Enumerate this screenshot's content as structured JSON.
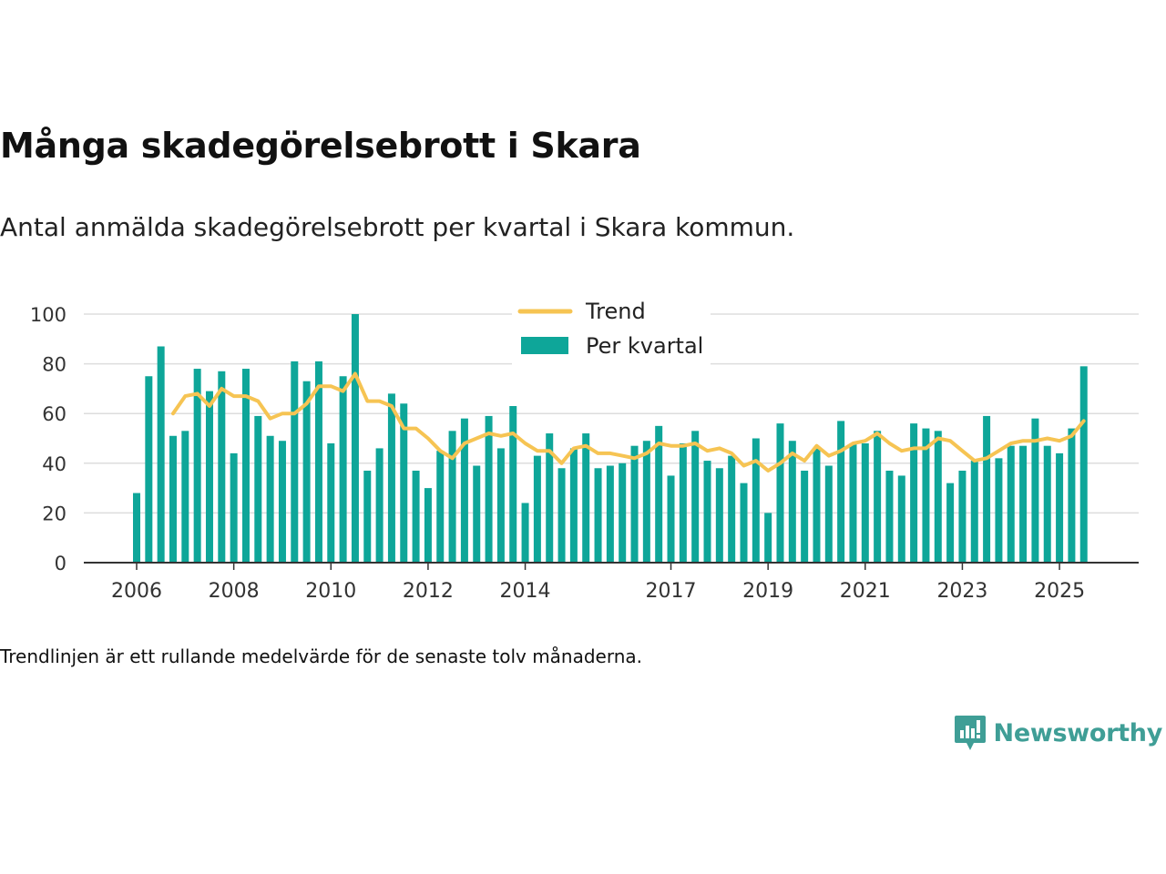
{
  "title": "Många skadegörelsebrott i Skara",
  "subtitle": "Antal anmälda skadegörelsebrott per kvartal i Skara kommun.",
  "footnote": "Trendlinjen är ett rullande medelvärde för de senaste tolv månaderna.",
  "brand": {
    "name": "Newsworthy",
    "icon": "newsworthy-logo-icon",
    "color": "#3f9e96"
  },
  "colors": {
    "bar": "#0ea699",
    "trend": "#f6c453",
    "grid": "#dddddd",
    "axis": "#333333"
  },
  "chart_data": {
    "type": "bar",
    "ylim": [
      0,
      100
    ],
    "yticks": [
      0,
      20,
      40,
      60,
      80,
      100
    ],
    "xticks": [
      "2006",
      "2008",
      "2010",
      "2012",
      "2014",
      "2017",
      "2019",
      "2021",
      "2023",
      "2025"
    ],
    "xtick_index": [
      0,
      8,
      16,
      24,
      32,
      44,
      52,
      60,
      68,
      76
    ],
    "legend": {
      "position": "top-center",
      "trend_label": "Trend",
      "bar_label": "Per kvartal"
    },
    "series": [
      {
        "name": "Per kvartal",
        "type": "bar",
        "values": [
          28,
          75,
          87,
          51,
          53,
          78,
          69,
          77,
          44,
          78,
          59,
          51,
          49,
          81,
          73,
          81,
          48,
          75,
          100,
          37,
          46,
          68,
          64,
          37,
          30,
          45,
          53,
          58,
          39,
          59,
          46,
          63,
          24,
          43,
          52,
          38,
          46,
          52,
          38,
          39,
          40,
          47,
          49,
          55,
          35,
          48,
          53,
          41,
          38,
          43,
          32,
          50,
          20,
          56,
          49,
          37,
          46,
          39,
          57,
          48,
          48,
          53,
          37,
          35,
          56,
          54,
          53,
          32,
          37,
          41,
          59,
          42,
          47,
          47,
          58,
          47,
          44,
          54,
          79
        ]
      },
      {
        "name": "Trend",
        "type": "line",
        "values": [
          null,
          null,
          null,
          60,
          67,
          68,
          63,
          70,
          67,
          67,
          65,
          58,
          60,
          60,
          64,
          71,
          71,
          69,
          76,
          65,
          65,
          63,
          54,
          54,
          50,
          45,
          42,
          48,
          50,
          52,
          51,
          52,
          48,
          45,
          45,
          40,
          46,
          47,
          44,
          44,
          43,
          42,
          44,
          48,
          47,
          47,
          48,
          45,
          46,
          44,
          39,
          41,
          37,
          40,
          44,
          41,
          47,
          43,
          45,
          48,
          49,
          52,
          48,
          45,
          46,
          46,
          50,
          49,
          45,
          41,
          42,
          45,
          48,
          49,
          49,
          50,
          49,
          51,
          57
        ]
      }
    ]
  }
}
